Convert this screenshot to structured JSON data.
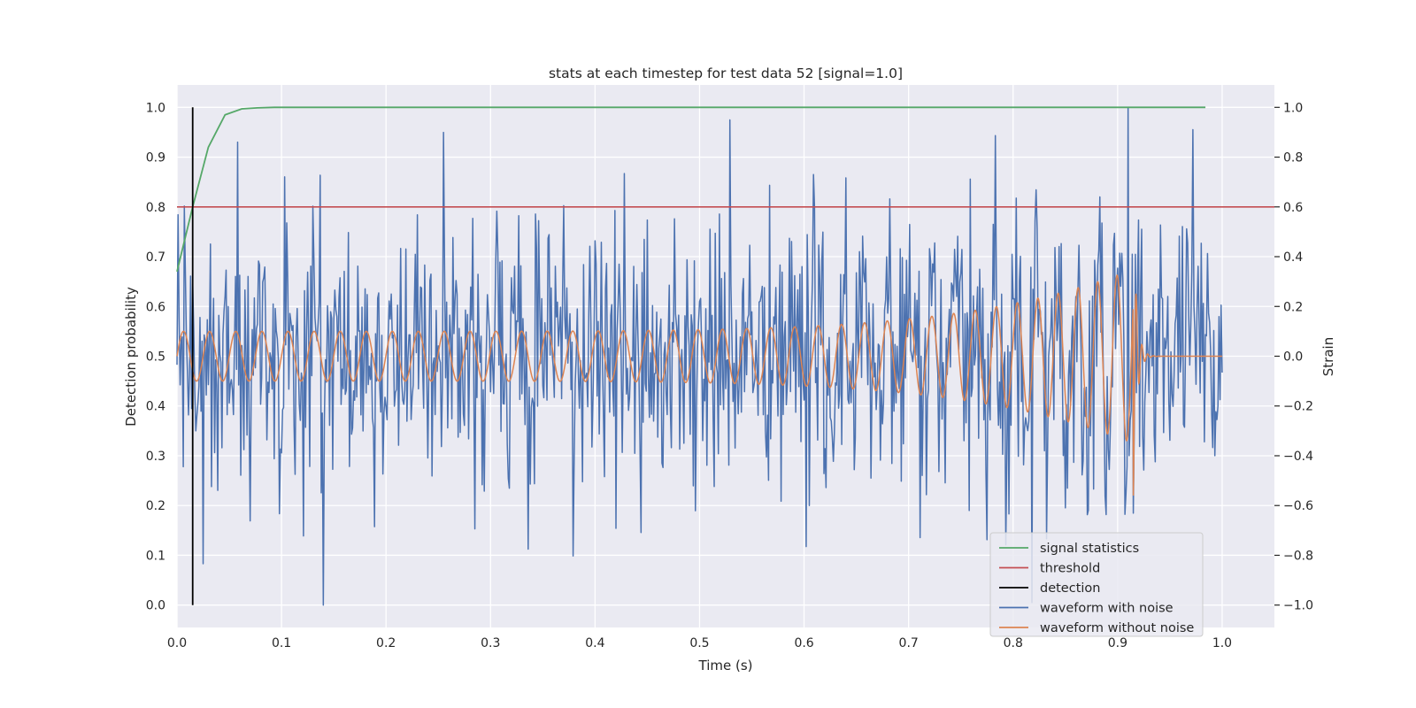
{
  "chart_data": {
    "type": "line",
    "title": "stats at each timestep for test data 52 [signal=1.0]",
    "xlabel": "Time (s)",
    "ylabel_left": "Detection probability",
    "ylabel_right": "Strain",
    "xlim": [
      0.0,
      1.05
    ],
    "ylim_left": [
      -0.045,
      1.045
    ],
    "ylim_right": [
      -1.09,
      1.09
    ],
    "x_ticks": [
      "0.0",
      "0.1",
      "0.2",
      "0.3",
      "0.4",
      "0.5",
      "0.6",
      "0.7",
      "0.8",
      "0.9",
      "1.0"
    ],
    "y_ticks_left": [
      "0.0",
      "0.1",
      "0.2",
      "0.3",
      "0.4",
      "0.5",
      "0.6",
      "0.7",
      "0.8",
      "0.9",
      "1.0"
    ],
    "y_ticks_right": [
      "−1.0",
      "−0.8",
      "−0.6",
      "−0.4",
      "−0.2",
      "0.0",
      "0.2",
      "0.4",
      "0.6",
      "0.8",
      "1.0"
    ],
    "grid": true,
    "legend_position": "lower-right",
    "colors": {
      "signal_statistics": "#55a868",
      "threshold": "#c44e52",
      "detection": "#000000",
      "waveform_with_noise": "#4c72b0",
      "waveform_without_noise": "#dd8452",
      "plot_background": "#eaeaf2",
      "grid": "#ffffff"
    },
    "series": [
      {
        "name": "signal statistics",
        "axis": "left",
        "x": [
          0.0,
          0.015,
          0.03,
          0.046,
          0.062,
          0.077,
          0.093,
          0.2,
          0.4,
          0.6,
          0.8,
          0.984
        ],
        "y": [
          0.67,
          0.8,
          0.92,
          0.985,
          0.997,
          0.999,
          1.0,
          1.0,
          1.0,
          1.0,
          1.0,
          1.0
        ]
      },
      {
        "name": "threshold",
        "axis": "left",
        "x": [
          0.0,
          1.05
        ],
        "y": [
          0.8,
          0.8
        ]
      },
      {
        "name": "detection",
        "axis": "left",
        "x": [
          0.015,
          0.015
        ],
        "y": [
          0.0,
          1.0
        ]
      },
      {
        "name": "waveform with noise",
        "axis": "right",
        "description_of_values": "random noise samples, amplitude approx ±1.0 around 0, about 1000 samples from 0.0 to 1.0 s; peaks: 1.0 at t≈0.91, -1.0 at t≈0.14"
      },
      {
        "name": "waveform without noise",
        "axis": "right",
        "description_of_values": "chirp: amplitude ≈0.1 with period ≈0.025 s growing to ≈0.35 near t≈0.91 (min ≈ -0.56 at t≈0.915), then ring-down to 0 by t≈0.93, flat to 1.0"
      }
    ],
    "legend": [
      "signal statistics",
      "threshold",
      "detection",
      "waveform with noise",
      "waveform without noise"
    ]
  }
}
